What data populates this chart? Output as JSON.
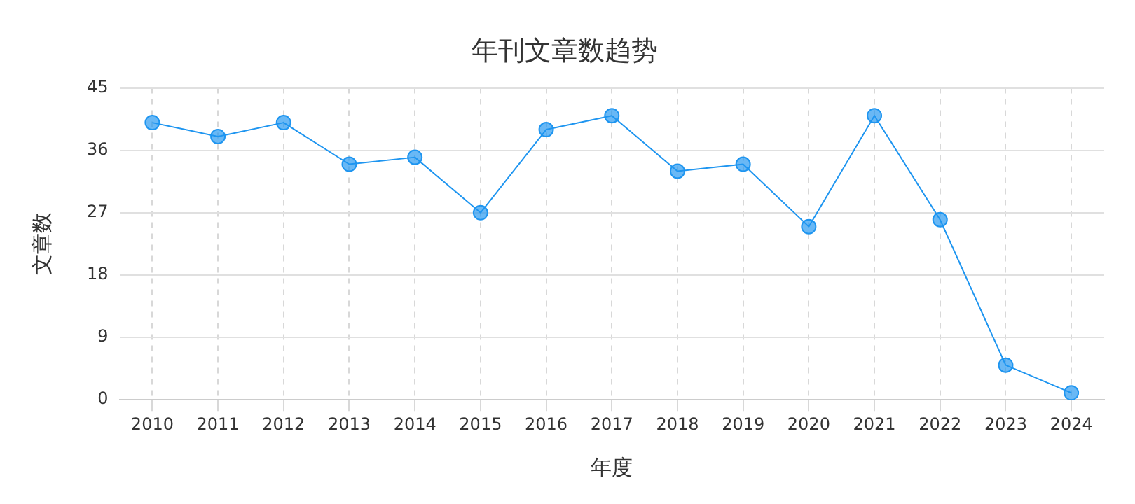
{
  "chart_data": {
    "type": "line",
    "title": "年刊文章数趋势",
    "xlabel": "年度",
    "ylabel": "文章数",
    "categories": [
      "2010",
      "2011",
      "2012",
      "2013",
      "2014",
      "2015",
      "2016",
      "2017",
      "2018",
      "2019",
      "2020",
      "2021",
      "2022",
      "2023",
      "2024"
    ],
    "series": [
      {
        "color": "#1e95f0",
        "values": [
          40,
          38,
          40,
          34,
          35,
          27,
          39,
          41,
          33,
          34,
          25,
          41,
          26,
          5,
          1
        ]
      }
    ],
    "ylim": [
      0,
      45
    ],
    "yticks": [
      0,
      9,
      18,
      27,
      36,
      45
    ],
    "grid": true,
    "marker": "circle",
    "line_style": "solid"
  }
}
